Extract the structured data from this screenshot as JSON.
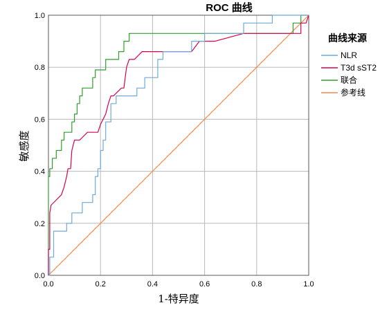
{
  "chart_data": {
    "type": "line",
    "title": "ROC 曲线",
    "xlabel": "1-特异度",
    "ylabel": "敏感度",
    "xlim": [
      0,
      1
    ],
    "ylim": [
      0,
      1
    ],
    "x_ticks": [
      "0.0",
      "0.2",
      "0.4",
      "0.6",
      "0.8",
      "1.0"
    ],
    "y_ticks": [
      "0.0",
      "0.2",
      "0.4",
      "0.6",
      "0.8",
      "1.0"
    ],
    "grid": true,
    "legend": {
      "title": "曲线来源",
      "placement": "right"
    },
    "series": [
      {
        "name": "NLR",
        "color": "#6fa8dc",
        "points": [
          [
            0,
            0
          ],
          [
            0.005,
            0
          ],
          [
            0.005,
            0.07
          ],
          [
            0.02,
            0.07
          ],
          [
            0.02,
            0.17
          ],
          [
            0.07,
            0.17
          ],
          [
            0.07,
            0.2
          ],
          [
            0.09,
            0.2
          ],
          [
            0.09,
            0.24
          ],
          [
            0.13,
            0.24
          ],
          [
            0.13,
            0.28
          ],
          [
            0.17,
            0.28
          ],
          [
            0.17,
            0.31
          ],
          [
            0.18,
            0.31
          ],
          [
            0.18,
            0.38
          ],
          [
            0.19,
            0.38
          ],
          [
            0.19,
            0.41
          ],
          [
            0.2,
            0.41
          ],
          [
            0.2,
            0.48
          ],
          [
            0.21,
            0.48
          ],
          [
            0.21,
            0.52
          ],
          [
            0.22,
            0.52
          ],
          [
            0.22,
            0.59
          ],
          [
            0.24,
            0.59
          ],
          [
            0.24,
            0.66
          ],
          [
            0.26,
            0.66
          ],
          [
            0.26,
            0.69
          ],
          [
            0.34,
            0.69
          ],
          [
            0.34,
            0.72
          ],
          [
            0.37,
            0.72
          ],
          [
            0.37,
            0.76
          ],
          [
            0.42,
            0.76
          ],
          [
            0.42,
            0.83
          ],
          [
            0.44,
            0.83
          ],
          [
            0.44,
            0.86
          ],
          [
            0.55,
            0.86
          ],
          [
            0.55,
            0.9
          ],
          [
            0.6,
            0.9
          ],
          [
            0.6,
            0.93
          ],
          [
            0.75,
            0.93
          ],
          [
            0.75,
            0.97
          ],
          [
            0.86,
            0.97
          ],
          [
            0.86,
            1.0
          ],
          [
            1.0,
            1.0
          ]
        ]
      },
      {
        "name": "T3d sST2",
        "color": "#d6004f",
        "points": [
          [
            0,
            0
          ],
          [
            0,
            0.1
          ],
          [
            0.005,
            0.1
          ],
          [
            0.005,
            0.24
          ],
          [
            0.01,
            0.27
          ],
          [
            0.03,
            0.29
          ],
          [
            0.05,
            0.31
          ],
          [
            0.06,
            0.34
          ],
          [
            0.07,
            0.38
          ],
          [
            0.075,
            0.41
          ],
          [
            0.085,
            0.41
          ],
          [
            0.09,
            0.48
          ],
          [
            0.1,
            0.52
          ],
          [
            0.12,
            0.52
          ],
          [
            0.14,
            0.54
          ],
          [
            0.15,
            0.55
          ],
          [
            0.19,
            0.55
          ],
          [
            0.2,
            0.58
          ],
          [
            0.22,
            0.62
          ],
          [
            0.23,
            0.66
          ],
          [
            0.24,
            0.69
          ],
          [
            0.25,
            0.69
          ],
          [
            0.26,
            0.7
          ],
          [
            0.28,
            0.72
          ],
          [
            0.29,
            0.72
          ],
          [
            0.3,
            0.8
          ],
          [
            0.31,
            0.83
          ],
          [
            0.33,
            0.83
          ],
          [
            0.36,
            0.86
          ],
          [
            0.55,
            0.86
          ],
          [
            0.58,
            0.9
          ],
          [
            0.64,
            0.9
          ],
          [
            0.75,
            0.93
          ],
          [
            0.97,
            0.93
          ],
          [
            0.97,
            0.97
          ],
          [
            0.99,
            0.97
          ],
          [
            1.0,
            1.0
          ]
        ]
      },
      {
        "name": "联合",
        "color": "#2e9e2e",
        "points": [
          [
            0,
            0
          ],
          [
            0,
            0.38
          ],
          [
            0.005,
            0.38
          ],
          [
            0.005,
            0.41
          ],
          [
            0.015,
            0.41
          ],
          [
            0.015,
            0.45
          ],
          [
            0.03,
            0.45
          ],
          [
            0.03,
            0.48
          ],
          [
            0.05,
            0.48
          ],
          [
            0.05,
            0.52
          ],
          [
            0.06,
            0.52
          ],
          [
            0.06,
            0.55
          ],
          [
            0.09,
            0.55
          ],
          [
            0.09,
            0.59
          ],
          [
            0.1,
            0.59
          ],
          [
            0.1,
            0.62
          ],
          [
            0.11,
            0.62
          ],
          [
            0.11,
            0.66
          ],
          [
            0.12,
            0.66
          ],
          [
            0.12,
            0.69
          ],
          [
            0.13,
            0.69
          ],
          [
            0.13,
            0.72
          ],
          [
            0.17,
            0.72
          ],
          [
            0.17,
            0.76
          ],
          [
            0.18,
            0.76
          ],
          [
            0.18,
            0.79
          ],
          [
            0.22,
            0.79
          ],
          [
            0.22,
            0.83
          ],
          [
            0.27,
            0.83
          ],
          [
            0.27,
            0.86
          ],
          [
            0.29,
            0.86
          ],
          [
            0.29,
            0.9
          ],
          [
            0.31,
            0.9
          ],
          [
            0.31,
            0.93
          ],
          [
            0.94,
            0.93
          ],
          [
            0.94,
            0.97
          ],
          [
            0.97,
            0.97
          ],
          [
            0.97,
            1.0
          ],
          [
            1.0,
            1.0
          ]
        ]
      },
      {
        "name": "参考线",
        "color": "#f58a4b",
        "points": [
          [
            0,
            0
          ],
          [
            1,
            1
          ]
        ]
      }
    ]
  }
}
